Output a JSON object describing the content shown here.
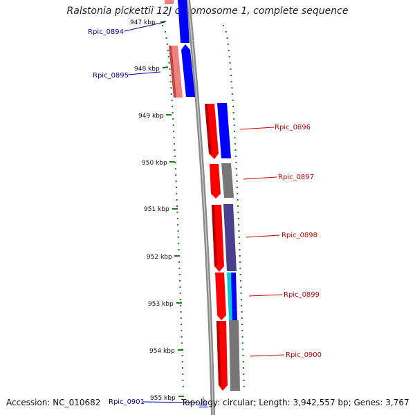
{
  "title": "Ralstonia pickettii 12J chromosome 1, complete sequence",
  "footer": {
    "accession": "Accession: NC_010682",
    "topology": "Topology: circular; Length: 3,942,557 bp; Genes: 3,767"
  },
  "ticks": [
    {
      "label": "947 kbp"
    },
    {
      "label": "948 kbp"
    },
    {
      "label": "949 kbp"
    },
    {
      "label": "950 kbp"
    },
    {
      "label": "951 kbp"
    },
    {
      "label": "952 kbp"
    },
    {
      "label": "953 kbp"
    },
    {
      "label": "954 kbp"
    },
    {
      "label": "955 kbp"
    }
  ],
  "genes": [
    {
      "name": "Rpic_0894",
      "strand": "reverse",
      "color": "#0000cc"
    },
    {
      "name": "Rpic_0895",
      "strand": "reverse",
      "color": "#0000cc"
    },
    {
      "name": "Rpic_0896",
      "strand": "forward",
      "color": "#cc0000"
    },
    {
      "name": "Rpic_0897",
      "strand": "forward",
      "color": "#cc0000"
    },
    {
      "name": "Rpic_0898",
      "strand": "forward",
      "color": "#cc0000"
    },
    {
      "name": "Rpic_0899",
      "strand": "forward",
      "color": "#cc0000"
    },
    {
      "name": "Rpic_0900",
      "strand": "forward",
      "color": "#cc0000"
    },
    {
      "name": "Rpic_0901",
      "strand": "reverse",
      "color": "#0000cc"
    }
  ],
  "colors": {
    "forward_gene": "#ff0000",
    "reverse_gene": "#0000ff",
    "rna_pink": "#f08080",
    "cog_gray": "#777777",
    "cog_purple": "#4b3f8f",
    "cog_cyan": "#00cccc",
    "gc_dots": "#1a7a1a",
    "backbone": "#888888"
  }
}
